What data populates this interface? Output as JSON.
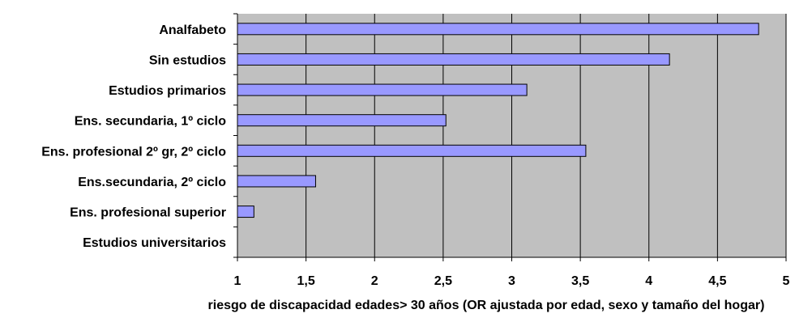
{
  "chart_data": {
    "type": "bar",
    "orientation": "horizontal",
    "title": "",
    "xlabel": "riesgo de discapacidad edades> 30 años (OR ajustada por edad, sexo y tamaño del hogar)",
    "ylabel": "",
    "xlim": [
      1,
      5
    ],
    "x_ticks": [
      1,
      1.5,
      2,
      2.5,
      3,
      3.5,
      4,
      4.5,
      5
    ],
    "x_tick_labels": [
      "1",
      "1,5",
      "2",
      "2,5",
      "3",
      "3,5",
      "4",
      "4,5",
      "5"
    ],
    "grid": "vertical",
    "legend": "none",
    "categories": [
      "Analfabeto",
      "Sin estudios",
      "Estudios primarios",
      "Ens. secundaria, 1º ciclo",
      "Ens. profesional 2º gr, 2º ciclo",
      "Ens.secundaria, 2º ciclo",
      "Ens. profesional superior",
      "Estudios universitarios"
    ],
    "values": [
      4.8,
      4.15,
      3.11,
      2.52,
      3.54,
      1.57,
      1.12,
      1.0
    ],
    "colors": {
      "bar_fill": "#9999ff",
      "bar_stroke": "#000000",
      "plot_background": "#c0c0c0",
      "gridline": "#000000"
    }
  }
}
